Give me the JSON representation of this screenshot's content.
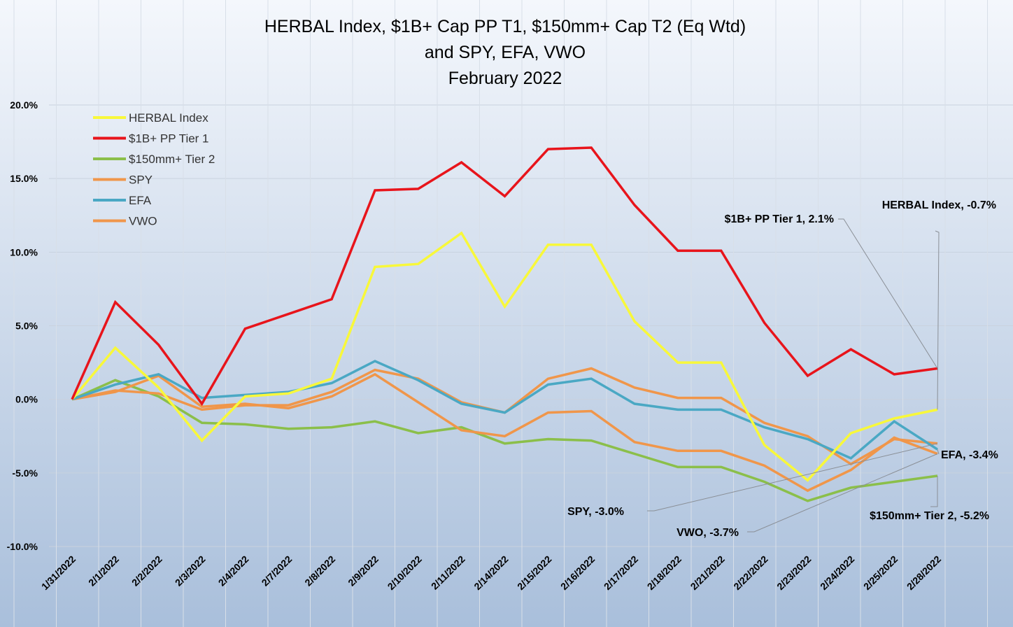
{
  "chart_data": {
    "type": "line",
    "title": [
      "HERBAL Index, $1B+ Cap PP T1, $150mm+ Cap T2  (Eq Wtd)",
      "and SPY, EFA, VWO",
      "February 2022"
    ],
    "xlabel": "",
    "ylabel": "",
    "ylim": [
      -0.1,
      0.2
    ],
    "yticks": [
      {
        "value": 0.2,
        "label": "20.0%"
      },
      {
        "value": 0.15,
        "label": "15.0%"
      },
      {
        "value": 0.1,
        "label": "10.0%"
      },
      {
        "value": 0.05,
        "label": "5.0%"
      },
      {
        "value": 0.0,
        "label": "0.0%"
      },
      {
        "value": -0.05,
        "label": "-5.0%"
      },
      {
        "value": -0.1,
        "label": "-10.0%"
      }
    ],
    "x": [
      "1/31/2022",
      "2/1/2022",
      "2/2/2022",
      "2/3/2022",
      "2/4/2022",
      "2/7/2022",
      "2/8/2022",
      "2/9/2022",
      "2/10/2022",
      "2/11/2022",
      "2/14/2022",
      "2/15/2022",
      "2/16/2022",
      "2/17/2022",
      "2/18/2022",
      "2/21/2022",
      "2/22/2022",
      "2/23/2022",
      "2/24/2022",
      "2/25/2022",
      "2/28/2022"
    ],
    "grid": true,
    "legend_position": "top-left",
    "background": {
      "top": "#f4f7fc",
      "bottom": "#a9bfdb"
    },
    "series": [
      {
        "name": "HERBAL Index",
        "color": "#f8f83a",
        "values": [
          0.0,
          0.035,
          0.008,
          -0.028,
          0.002,
          0.004,
          0.014,
          0.09,
          0.092,
          0.113,
          0.063,
          0.105,
          0.105,
          0.053,
          0.025,
          0.025,
          -0.031,
          -0.055,
          -0.023,
          -0.013,
          -0.007
        ]
      },
      {
        "name": "$1B+ PP Tier 1",
        "color": "#e8141b",
        "values": [
          0.0,
          0.066,
          0.037,
          -0.003,
          0.048,
          0.058,
          0.068,
          0.142,
          0.143,
          0.161,
          0.138,
          0.17,
          0.171,
          0.132,
          0.101,
          0.101,
          0.052,
          0.016,
          0.034,
          0.017,
          0.021
        ]
      },
      {
        "name": "$150mm+ Tier 2",
        "color": "#8bbf4a",
        "values": [
          0.0,
          0.013,
          0.002,
          -0.016,
          -0.017,
          -0.02,
          -0.019,
          -0.015,
          -0.023,
          -0.019,
          -0.03,
          -0.027,
          -0.028,
          -0.037,
          -0.046,
          -0.046,
          -0.056,
          -0.069,
          -0.06,
          -0.056,
          -0.052
        ]
      },
      {
        "name": "SPY",
        "color": "#f0964a",
        "values": [
          0.0,
          0.006,
          0.004,
          -0.007,
          -0.004,
          -0.004,
          0.005,
          0.02,
          0.014,
          -0.002,
          -0.009,
          0.014,
          0.021,
          0.008,
          0.001,
          0.001,
          -0.016,
          -0.025,
          -0.044,
          -0.027,
          -0.03
        ]
      },
      {
        "name": "EFA",
        "color": "#4aa8c4",
        "values": [
          0.0,
          0.01,
          0.017,
          0.001,
          0.003,
          0.005,
          0.011,
          0.026,
          0.013,
          -0.003,
          -0.009,
          0.01,
          0.014,
          -0.003,
          -0.007,
          -0.007,
          -0.019,
          -0.027,
          -0.04,
          -0.015,
          -0.034
        ]
      },
      {
        "name": "VWO",
        "color": "#f0964a",
        "values": [
          0.0,
          0.005,
          0.016,
          -0.005,
          -0.003,
          -0.006,
          0.002,
          0.017,
          -0.002,
          -0.021,
          -0.025,
          -0.009,
          -0.008,
          -0.029,
          -0.035,
          -0.035,
          -0.045,
          -0.062,
          -0.048,
          -0.026,
          -0.037
        ]
      }
    ],
    "annotations": [
      {
        "series": "$1B+ PP Tier 1",
        "text": "$1B+ PP Tier 1, 2.1%"
      },
      {
        "series": "HERBAL Index",
        "text": "HERBAL Index, -0.7%"
      },
      {
        "series": "EFA",
        "text": "EFA, -3.4%"
      },
      {
        "series": "SPY",
        "text": "SPY, -3.0%"
      },
      {
        "series": "VWO",
        "text": "VWO, -3.7%"
      },
      {
        "series": "$150mm+ Tier 2",
        "text": "$150mm+ Tier 2, -5.2%"
      }
    ]
  }
}
